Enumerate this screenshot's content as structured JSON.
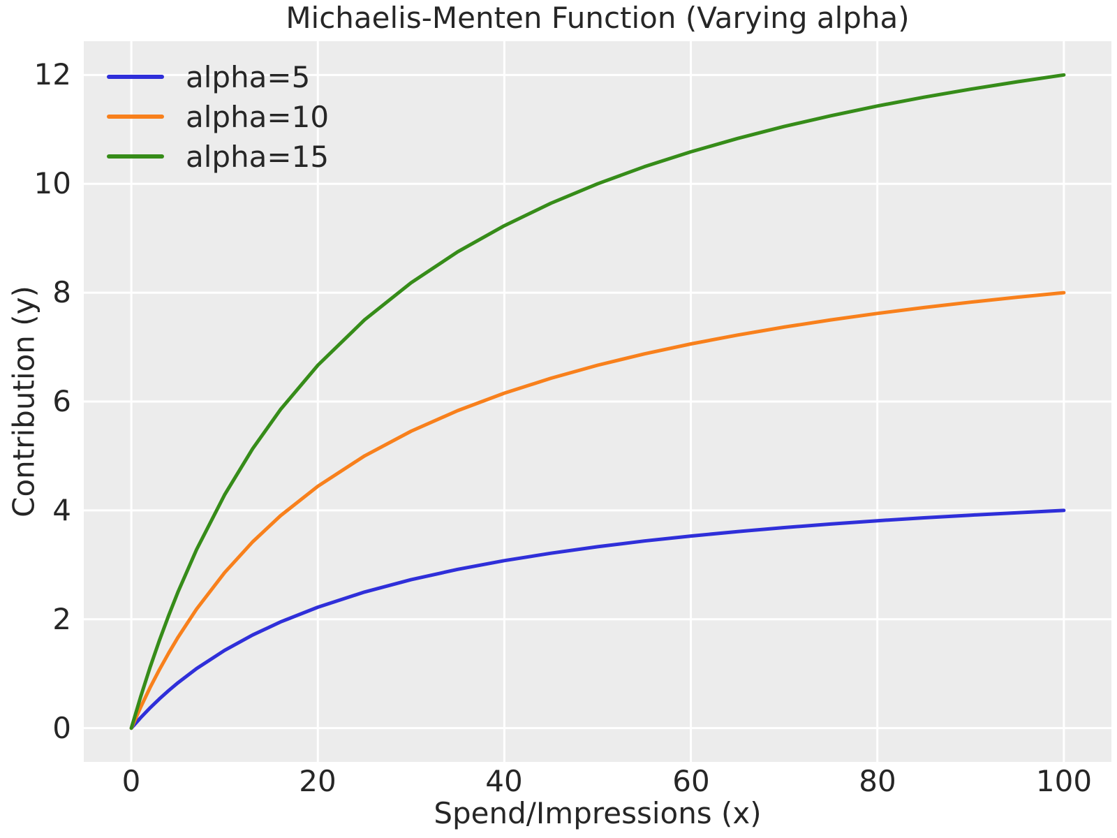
{
  "chart_data": {
    "type": "line",
    "title": "Michaelis-Menten Function (Varying alpha)",
    "xlabel": "Spend/Impressions (x)",
    "ylabel": "Contribution (y)",
    "xlim": [
      -5.1,
      105.1
    ],
    "ylim": [
      -0.62,
      12.62
    ],
    "xticks": [
      "0",
      "20",
      "40",
      "60",
      "80",
      "100"
    ],
    "yticks": [
      "0",
      "2",
      "4",
      "6",
      "8",
      "10",
      "12"
    ],
    "grid": true,
    "grid_color": "#ffffff",
    "plot_background": "#ececec",
    "text_color": "#262626",
    "legend_position": "upper left",
    "function": "y = alpha * x / (x + lambda)",
    "lambda": 25,
    "x": [
      0,
      1,
      2,
      3,
      4,
      5,
      7,
      10,
      13,
      16,
      20,
      25,
      30,
      35,
      40,
      45,
      50,
      55,
      60,
      65,
      70,
      75,
      80,
      85,
      90,
      95,
      100
    ],
    "series": [
      {
        "name": "alpha=5",
        "alpha": 5,
        "color": "#2f2fd9",
        "values": [
          0,
          0.192,
          0.37,
          0.536,
          0.69,
          0.833,
          1.094,
          1.429,
          1.711,
          1.951,
          2.222,
          2.5,
          2.727,
          2.917,
          3.077,
          3.214,
          3.333,
          3.438,
          3.529,
          3.611,
          3.684,
          3.75,
          3.81,
          3.864,
          3.913,
          3.958,
          4.0
        ]
      },
      {
        "name": "alpha=10",
        "alpha": 10,
        "color": "#f8801c",
        "values": [
          0,
          0.385,
          0.741,
          1.071,
          1.379,
          1.667,
          2.188,
          2.857,
          3.421,
          3.902,
          4.444,
          5.0,
          5.455,
          5.833,
          6.154,
          6.429,
          6.667,
          6.875,
          7.059,
          7.222,
          7.368,
          7.5,
          7.619,
          7.727,
          7.826,
          7.917,
          8.0
        ]
      },
      {
        "name": "alpha=15",
        "alpha": 15,
        "color": "#368c19",
        "values": [
          0,
          0.577,
          1.111,
          1.607,
          2.069,
          2.5,
          3.281,
          4.286,
          5.132,
          5.854,
          6.667,
          7.5,
          8.182,
          8.75,
          9.231,
          9.643,
          10.0,
          10.313,
          10.588,
          10.833,
          11.053,
          11.25,
          11.429,
          11.591,
          11.739,
          11.875,
          12.0
        ]
      }
    ]
  }
}
